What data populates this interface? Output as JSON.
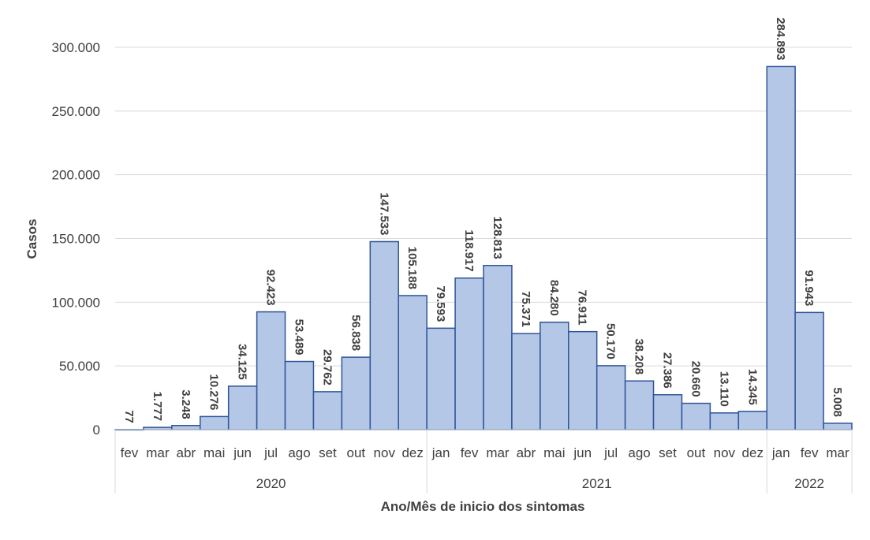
{
  "chart_data": {
    "type": "bar",
    "xlabel": "Ano/Mês de inicio dos sintomas",
    "ylabel": "Casos",
    "ylim": [
      0,
      300000
    ],
    "yticks": [
      0,
      50000,
      100000,
      150000,
      200000,
      250000,
      300000
    ],
    "ytick_labels": [
      "0",
      "50.000",
      "100.000",
      "150.000",
      "200.000",
      "250.000",
      "300.000"
    ],
    "grid": true,
    "legend": "none",
    "bar_color": "#b4c7e7",
    "bar_edge_color": "#2f5597",
    "categories": [
      "fev",
      "mar",
      "abr",
      "mai",
      "jun",
      "jul",
      "ago",
      "set",
      "out",
      "nov",
      "dez",
      "jan",
      "fev",
      "mar",
      "abr",
      "mai",
      "jun",
      "jul",
      "ago",
      "set",
      "out",
      "nov",
      "dez",
      "jan",
      "fev",
      "mar"
    ],
    "values": [
      77,
      1777,
      3248,
      10276,
      34125,
      92423,
      53489,
      29762,
      56838,
      147533,
      105188,
      79593,
      118917,
      128813,
      75371,
      84280,
      76911,
      50170,
      38208,
      27386,
      20660,
      13110,
      14345,
      284893,
      91943,
      5008
    ],
    "value_labels": [
      "77",
      "1.777",
      "3.248",
      "10.276",
      "34.125",
      "92.423",
      "53.489",
      "29.762",
      "56.838",
      "147.533",
      "105.188",
      "79.593",
      "118.917",
      "128.813",
      "75.371",
      "84.280",
      "76.911",
      "50.170",
      "38.208",
      "27.386",
      "20.660",
      "13.110",
      "14.345",
      "284.893",
      "91.943",
      "5.008"
    ],
    "groups": [
      {
        "label": "2020",
        "count": 11
      },
      {
        "label": "2021",
        "count": 12
      },
      {
        "label": "2022",
        "count": 3
      }
    ]
  }
}
